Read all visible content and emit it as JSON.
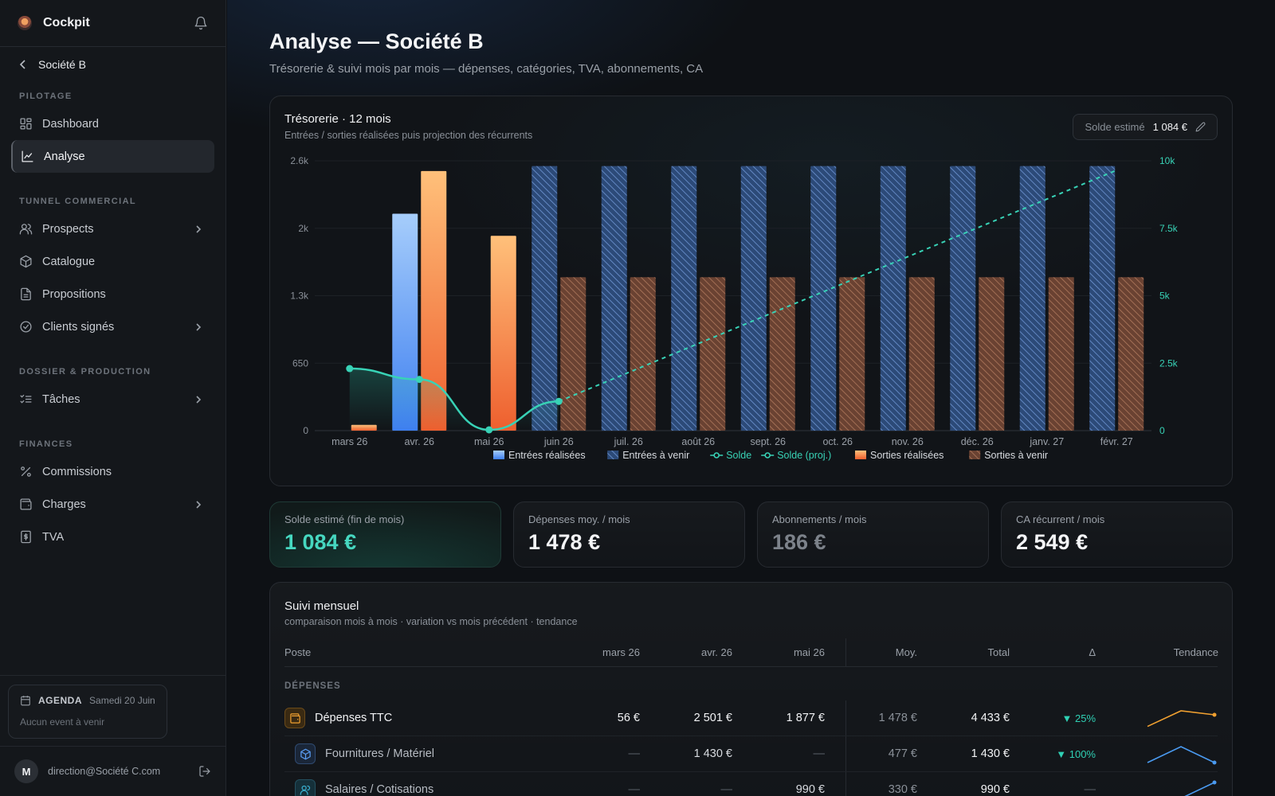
{
  "sidebar": {
    "brand": "Cockpit",
    "back_label": "Société B",
    "sections": [
      {
        "title": "PILOTAGE",
        "items": [
          {
            "label": "Dashboard"
          },
          {
            "label": "Analyse"
          }
        ]
      },
      {
        "title": "TUNNEL COMMERCIAL",
        "items": [
          {
            "label": "Prospects"
          },
          {
            "label": "Catalogue"
          },
          {
            "label": "Propositions"
          },
          {
            "label": "Clients signés"
          }
        ]
      },
      {
        "title": "DOSSIER & PRODUCTION",
        "items": [
          {
            "label": "Tâches"
          }
        ]
      },
      {
        "title": "FINANCES",
        "items": [
          {
            "label": "Commissions"
          },
          {
            "label": "Charges"
          },
          {
            "label": "TVA"
          }
        ]
      }
    ],
    "agenda": {
      "title": "AGENDA",
      "date": "Samedi 20 Juin",
      "empty": "Aucun event à venir"
    },
    "user": {
      "initial": "M",
      "email": "direction@Société C.com"
    }
  },
  "header": {
    "title": "Analyse — Société B",
    "subtitle": "Trésorerie & suivi mois par mois — dépenses, catégories, TVA, abonnements, CA"
  },
  "chart_card": {
    "title": "Trésorerie · 12 mois",
    "subtitle": "Entrées / sorties réalisées puis projection des récurrents",
    "solde_label": "Solde estimé",
    "solde_value": "1 084 €"
  },
  "chart_data": {
    "type": "bar",
    "categories": [
      "mars 26",
      "avr. 26",
      "mai 26",
      "juin 26",
      "juil. 26",
      "août 26",
      "sept. 26",
      "oct. 26",
      "nov. 26",
      "déc. 26",
      "janv. 27",
      "févr. 27"
    ],
    "y_left": {
      "ticks": [
        "0",
        "650",
        "1.3k",
        "2k",
        "2.6k"
      ],
      "range": [
        0,
        2600
      ]
    },
    "y_right": {
      "ticks": [
        "0",
        "2.5k",
        "5k",
        "7.5k",
        "10k"
      ],
      "range": [
        0,
        10000
      ]
    },
    "series": [
      {
        "name": "Entrées réalisées",
        "color": "#4a8ff0",
        "values": [
          0,
          2090,
          0,
          null,
          null,
          null,
          null,
          null,
          null,
          null,
          null,
          null
        ]
      },
      {
        "name": "Entrées à venir",
        "color": "#3b5f99",
        "values": [
          null,
          null,
          null,
          2549,
          2549,
          2549,
          2549,
          2549,
          2549,
          2549,
          2549,
          2549
        ]
      },
      {
        "name": "Solde",
        "color": "#38d2b6",
        "values": [
          2300,
          1900,
          30,
          1084,
          null,
          null,
          null,
          null,
          null,
          null,
          null,
          null
        ]
      },
      {
        "name": "Solde (proj.)",
        "color": "#38d2b6",
        "values": [
          null,
          null,
          null,
          1084,
          2155,
          3226,
          4297,
          5368,
          6439,
          7510,
          8581,
          9652
        ]
      },
      {
        "name": "Sorties réalisées",
        "color": "#f27a3d",
        "values": [
          56,
          2501,
          1877,
          null,
          null,
          null,
          null,
          null,
          null,
          null,
          null,
          null
        ]
      },
      {
        "name": "Sorties à venir",
        "color": "#8a5a42",
        "values": [
          null,
          null,
          null,
          1478,
          1478,
          1478,
          1478,
          1478,
          1478,
          1478,
          1478,
          1478
        ]
      }
    ],
    "legend_position": "bottom"
  },
  "kpis": [
    {
      "label": "Solde estimé (fin de mois)",
      "value": "1 084 €"
    },
    {
      "label": "Dépenses moy. / mois",
      "value": "1 478 €"
    },
    {
      "label": "Abonnements / mois",
      "value": "186 €"
    },
    {
      "label": "CA récurrent / mois",
      "value": "2 549 €"
    }
  ],
  "table": {
    "title": "Suivi mensuel",
    "subtitle": "comparaison mois à mois · variation vs mois précédent · tendance",
    "headers": [
      "Poste",
      "mars 26",
      "avr. 26",
      "mai 26",
      "Moy.",
      "Total",
      "Δ",
      "Tendance"
    ],
    "group": "DÉPENSES",
    "rows": [
      {
        "label": "Dépenses TTC",
        "m1": "56 €",
        "m2": "2 501 €",
        "m3": "1 877 €",
        "avg": "1 478 €",
        "total": "4 433 €",
        "delta": "▼ 25%",
        "trend": [
          56,
          2501,
          1877
        ],
        "trend_color": "#f0a030"
      },
      {
        "label": "Fournitures / Matériel",
        "m1": "—",
        "m2": "1 430 €",
        "m3": "—",
        "avg": "477 €",
        "total": "1 430 €",
        "delta": "▼ 100%",
        "trend": [
          0,
          1430,
          0
        ],
        "trend_color": "#4a9af0"
      },
      {
        "label": "Salaires / Cotisations",
        "m1": "—",
        "m2": "—",
        "m3": "990 €",
        "avg": "330 €",
        "total": "990 €",
        "delta": "—",
        "trend": [
          0,
          0,
          990
        ],
        "trend_color": "#4a9af0"
      }
    ]
  }
}
